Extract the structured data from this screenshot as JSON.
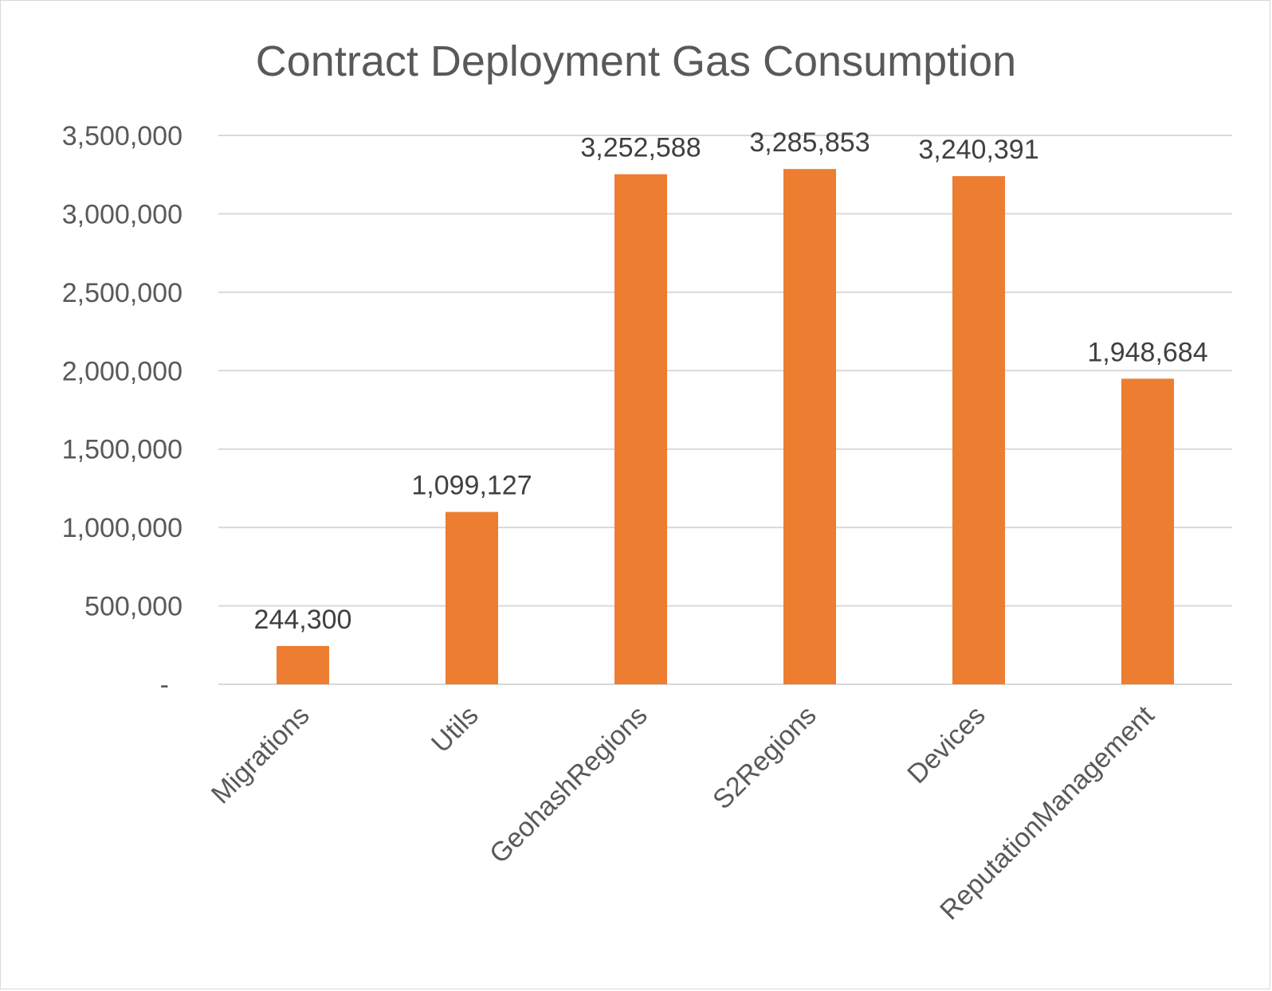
{
  "chart_data": {
    "type": "bar",
    "title": "Contract Deployment Gas Consumption",
    "categories": [
      "Migrations",
      "Utils",
      "GeohashRegions",
      "S2Regions",
      "Devices",
      "ReputationManagement"
    ],
    "values": [
      244300,
      1099127,
      3252588,
      3285853,
      3240391,
      1948684
    ],
    "data_labels": [
      "244,300",
      "1,099,127",
      "3,252,588",
      "3,285,853",
      "3,240,391",
      "1,948,684"
    ],
    "y_ticks": [
      {
        "value": 0,
        "label": "-"
      },
      {
        "value": 500000,
        "label": "500,000"
      },
      {
        "value": 1000000,
        "label": "1,000,000"
      },
      {
        "value": 1500000,
        "label": "1,500,000"
      },
      {
        "value": 2000000,
        "label": "2,000,000"
      },
      {
        "value": 2500000,
        "label": "2,500,000"
      },
      {
        "value": 3000000,
        "label": "3,000,000"
      },
      {
        "value": 3500000,
        "label": "3,500,000"
      }
    ],
    "ylim": [
      0,
      3500000
    ],
    "xlabel": "",
    "ylabel": "",
    "grid": true,
    "legend": "none",
    "bar_color": "#ED7D31"
  }
}
